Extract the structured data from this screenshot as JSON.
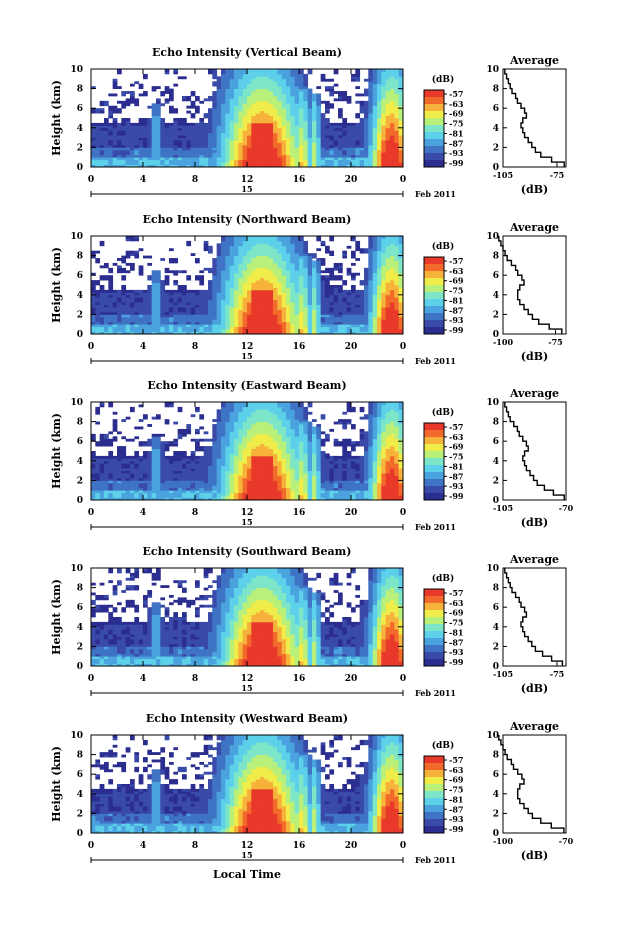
{
  "chart_data": {
    "type": "heatmap",
    "xlabel": "Local Time",
    "date_label": "Feb 2011",
    "day_label": "15",
    "x_tick_labels": [
      "0",
      "4",
      "8",
      "12",
      "16",
      "20",
      "0"
    ],
    "y_tick_labels": [
      "0",
      "2",
      "4",
      "6",
      "8",
      "10"
    ],
    "ylabel": "Height (km)",
    "ylim": [
      0,
      10
    ],
    "xlim": [
      0,
      24
    ],
    "colorbar_unit": "(dB)",
    "colorbar_labels": [
      "-57",
      "-63",
      "-69",
      "-75",
      "-81",
      "-87",
      "-93",
      "-99"
    ],
    "colorbar_range": [
      -99,
      -57
    ],
    "average_title": "Average",
    "average_xlabel": "(dB)",
    "average_heights": [
      0,
      0.5,
      1,
      1.5,
      2,
      2.5,
      3,
      3.5,
      4,
      4.5,
      5,
      5.5,
      6,
      6.5,
      7,
      7.5,
      8,
      8.5,
      9,
      9.5
    ],
    "panels": [
      {
        "title": "Echo Intensity (Vertical Beam)",
        "avg_tick_labels": [
          "-105",
          "-75"
        ],
        "avg_xlim": [
          -105,
          -70
        ],
        "avg_values": [
          -71,
          -78,
          -84,
          -87,
          -89,
          -91,
          -93,
          -94,
          -95,
          -94,
          -92,
          -93,
          -95,
          -97,
          -98,
          -100,
          -101,
          -102,
          -103,
          -104
        ]
      },
      {
        "title": "Echo Intensity (Northward Beam)",
        "avg_tick_labels": [
          "-100",
          "-75"
        ],
        "avg_xlim": [
          -100,
          -70
        ],
        "avg_values": [
          -72,
          -78,
          -83,
          -86,
          -88,
          -90,
          -92,
          -93,
          -93,
          -92,
          -90,
          -91,
          -93,
          -94,
          -96,
          -98,
          -99,
          -100,
          -101,
          -102
        ]
      },
      {
        "title": "Echo Intensity (Eastward Beam)",
        "avg_tick_labels": [
          "-105",
          "-70"
        ],
        "avg_xlim": [
          -105,
          -70
        ],
        "avg_values": [
          -71,
          -77,
          -82,
          -86,
          -88,
          -90,
          -92,
          -93,
          -94,
          -93,
          -91,
          -92,
          -94,
          -96,
          -97,
          -99,
          -101,
          -102,
          -103,
          -104
        ]
      },
      {
        "title": "Echo Intensity (Southward Beam)",
        "avg_tick_labels": [
          "-105",
          "-75"
        ],
        "avg_xlim": [
          -105,
          -70
        ],
        "avg_values": [
          -72,
          -78,
          -83,
          -87,
          -89,
          -91,
          -93,
          -94,
          -95,
          -94,
          -92,
          -93,
          -95,
          -96,
          -98,
          -100,
          -101,
          -102,
          -103,
          -104
        ]
      },
      {
        "title": "Echo Intensity (Westward Beam)",
        "avg_tick_labels": [
          "-100",
          "-70"
        ],
        "avg_xlim": [
          -100,
          -70
        ],
        "avg_values": [
          -71,
          -77,
          -82,
          -86,
          -88,
          -90,
          -92,
          -93,
          -93,
          -92,
          -90,
          -91,
          -93,
          -95,
          -96,
          -98,
          -99,
          -100,
          -101,
          -102
        ]
      }
    ]
  },
  "colors": {
    "colormap": [
      "#2b2d8f",
      "#3a4aa8",
      "#3f73c4",
      "#4aa3de",
      "#5dd0ea",
      "#7ee6c8",
      "#b8f07a",
      "#f0ec4a",
      "#f6b23a",
      "#f26a2a",
      "#e8392a"
    ]
  }
}
